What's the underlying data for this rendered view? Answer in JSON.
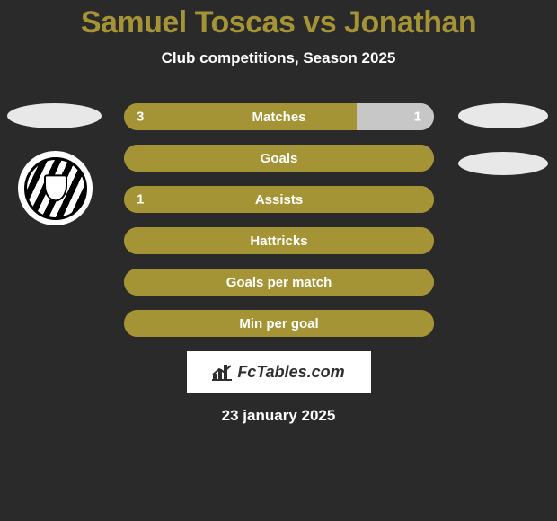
{
  "header": {
    "title": "Samuel Toscas vs Jonathan",
    "subtitle": "Club competitions, Season 2025",
    "title_color": "#a59435"
  },
  "colors": {
    "left_fill": "#a59435",
    "right_fill": "#c7c7c7",
    "background": "#2a2a2a"
  },
  "bars": [
    {
      "label": "Matches",
      "left": "3",
      "right": "1",
      "left_pct": 75,
      "right_pct": 25
    },
    {
      "label": "Goals",
      "left": "",
      "right": "",
      "left_pct": 100,
      "right_pct": 0
    },
    {
      "label": "Assists",
      "left": "1",
      "right": "",
      "left_pct": 100,
      "right_pct": 0
    },
    {
      "label": "Hattricks",
      "left": "",
      "right": "",
      "left_pct": 100,
      "right_pct": 0
    },
    {
      "label": "Goals per match",
      "left": "",
      "right": "",
      "left_pct": 100,
      "right_pct": 0
    },
    {
      "label": "Min per goal",
      "left": "",
      "right": "",
      "left_pct": 100,
      "right_pct": 0
    }
  ],
  "footer": {
    "brand": "FcTables.com",
    "date": "23 january 2025"
  }
}
